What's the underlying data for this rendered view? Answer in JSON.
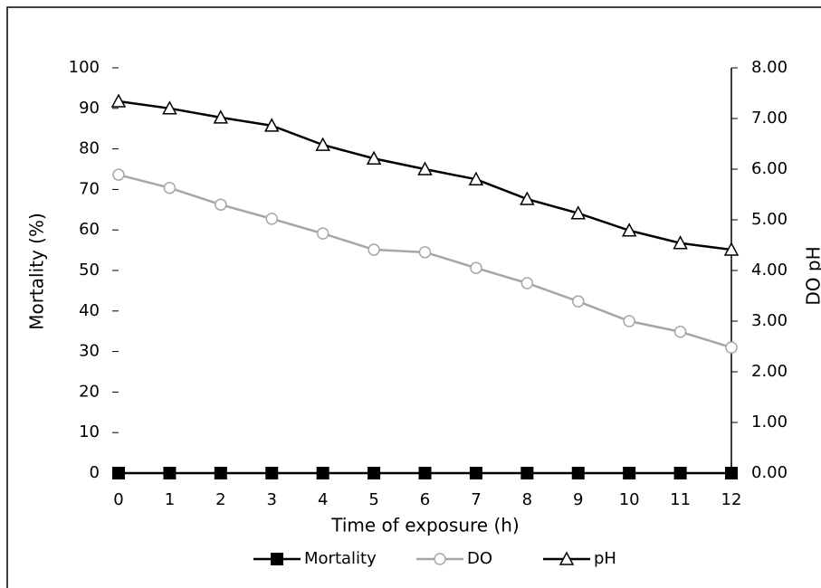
{
  "chart_data": {
    "type": "line",
    "x": [
      0,
      1,
      2,
      3,
      4,
      5,
      6,
      7,
      8,
      9,
      10,
      11,
      12
    ],
    "xlim": [
      0,
      12
    ],
    "xticks": [
      0,
      1,
      2,
      3,
      4,
      5,
      6,
      7,
      8,
      9,
      10,
      11,
      12
    ],
    "xlabel": "Time of exposure (h)",
    "ylabel": "Mortality (%)",
    "y2label": "DO pH",
    "ylim": [
      0,
      100
    ],
    "yticks": [
      0,
      10,
      20,
      30,
      40,
      50,
      60,
      70,
      80,
      90,
      100
    ],
    "y2lim": [
      0,
      8
    ],
    "y2ticks": [
      {
        "value": 0,
        "label": "0.00"
      },
      {
        "value": 1,
        "label": "1.00"
      },
      {
        "value": 2,
        "label": "2.00"
      },
      {
        "value": 3,
        "label": "3.00"
      },
      {
        "value": 4,
        "label": "4.00"
      },
      {
        "value": 5,
        "label": "5.00"
      },
      {
        "value": 6,
        "label": "6.00"
      },
      {
        "value": 7,
        "label": "7.00"
      },
      {
        "value": 8,
        "label": "8.00"
      }
    ],
    "legend": "bottom",
    "series": [
      {
        "name": "Mortality",
        "color": "#000000",
        "marker": "square",
        "values": [
          0,
          0,
          0,
          0,
          0,
          0,
          0,
          0,
          0,
          0,
          0,
          0,
          0
        ]
      },
      {
        "name": "DO",
        "color": "#a6a6a6",
        "marker": "circle",
        "axis": "y2",
        "values": [
          5.89,
          5.63,
          5.3,
          5.02,
          4.73,
          4.41,
          4.36,
          4.05,
          3.75,
          3.39,
          3.0,
          2.79,
          2.48
        ]
      },
      {
        "name": "pH",
        "color": "#000000",
        "marker": "triangle",
        "axis": "y2",
        "values": [
          7.34,
          7.2,
          7.02,
          6.86,
          6.48,
          6.21,
          6.0,
          5.8,
          5.41,
          5.13,
          4.79,
          4.54,
          4.41
        ]
      }
    ]
  }
}
